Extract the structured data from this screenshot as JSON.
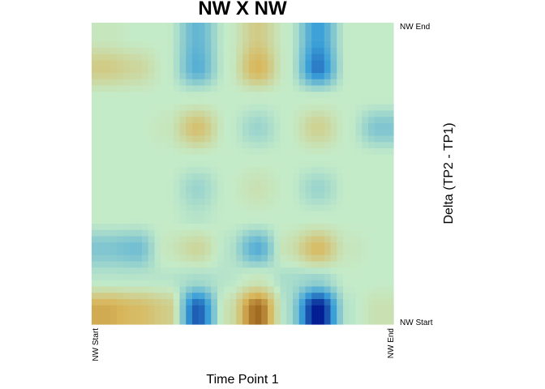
{
  "chart_data": {
    "type": "heatmap",
    "title": "NW X NW",
    "xlabel": "Time Point 1",
    "ylabel": "Delta (TP2 - TP1)",
    "x_ticks": [
      "NW Start",
      "NW End"
    ],
    "y_ticks": [
      "NW Start",
      "NW End"
    ],
    "rows_bottom_to_top": 10,
    "cols_left_to_right": 10,
    "values": [
      [
        0.55,
        0.45,
        0.3,
        -0.75,
        0.1,
        0.85,
        -0.1,
        -1.0,
        -0.05,
        0.1
      ],
      [
        -0.05,
        -0.05,
        -0.05,
        -0.1,
        -0.05,
        0.05,
        -0.1,
        -0.15,
        0.0,
        0.0
      ],
      [
        -0.25,
        -0.3,
        0.05,
        0.2,
        -0.05,
        -0.4,
        0.1,
        0.45,
        0.05,
        0.0
      ],
      [
        0.0,
        0.0,
        0.0,
        -0.05,
        0.0,
        0.0,
        0.0,
        0.0,
        0.0,
        0.0
      ],
      [
        0.0,
        0.0,
        0.0,
        -0.15,
        0.0,
        0.1,
        0.0,
        -0.15,
        0.0,
        0.0
      ],
      [
        0.0,
        0.0,
        0.0,
        0.0,
        0.0,
        0.0,
        0.0,
        0.0,
        0.0,
        0.0
      ],
      [
        0.0,
        0.0,
        0.05,
        0.4,
        0.0,
        -0.15,
        0.0,
        0.25,
        0.0,
        -0.25
      ],
      [
        0.0,
        0.0,
        0.0,
        0.0,
        0.0,
        0.0,
        0.0,
        0.0,
        0.0,
        0.0
      ],
      [
        0.3,
        0.2,
        0.0,
        -0.4,
        0.0,
        0.5,
        0.0,
        -0.65,
        0.0,
        0.0
      ],
      [
        0.05,
        0.0,
        0.0,
        -0.35,
        0.0,
        0.3,
        0.0,
        -0.5,
        0.0,
        0.0
      ]
    ],
    "value_range": [
      -1,
      1
    ],
    "colormap": {
      "low": "#00178f",
      "mid_low": "#3a9fd8",
      "zero": "#c4ebc8",
      "mid_high": "#d9b65a",
      "high": "#8a4b0a"
    },
    "grid": false,
    "legend": "none"
  }
}
